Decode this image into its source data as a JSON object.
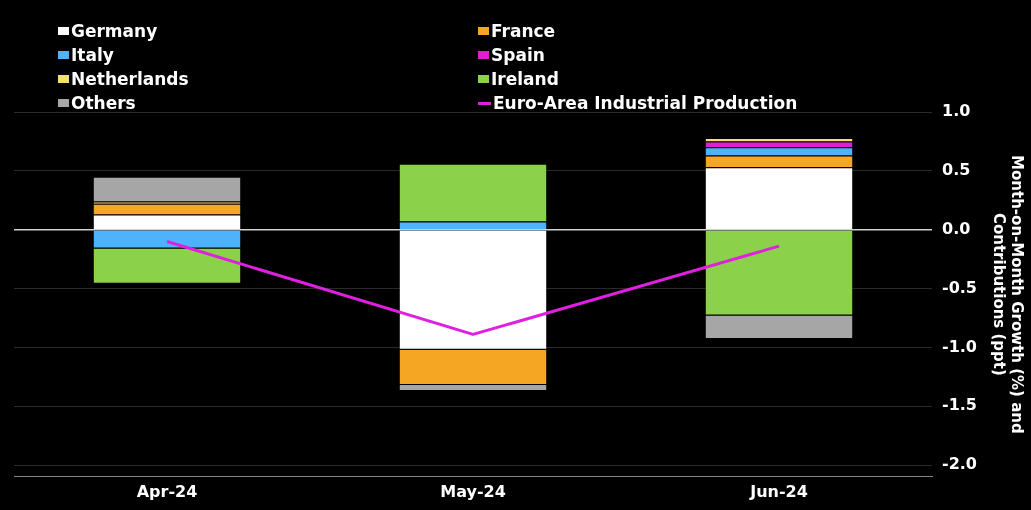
{
  "chart_data": {
    "type": "bar",
    "stacked": true,
    "categories": [
      "Apr-24",
      "May-24",
      "Jun-24"
    ],
    "y2label": "Month-on-Month Growth (%) and Contributions (ppt)",
    "y2lim": [
      -2.1,
      1.0
    ],
    "y2ticks": [
      {
        "value": -2,
        "label": "-2.0"
      },
      {
        "value": -1.5,
        "label": "-1.5"
      },
      {
        "value": -1,
        "label": "-1.0"
      },
      {
        "value": -0.5,
        "label": "-0.5"
      },
      {
        "value": 0,
        "label": "0.0"
      },
      {
        "value": 0.5,
        "label": "0.5"
      },
      {
        "value": 1,
        "label": "1.0"
      }
    ],
    "grid": "y",
    "legend": "top left",
    "series": [
      {
        "name": "Germany",
        "color": "#ffffff",
        "axis": "y2",
        "values": [
          0.13,
          -1.02,
          0.53
        ]
      },
      {
        "name": "France",
        "color": "#f5a623",
        "axis": "y2",
        "values": [
          0.09,
          -0.3,
          0.1
        ]
      },
      {
        "name": "Italy",
        "color": "#4db3ff",
        "axis": "y2",
        "values": [
          -0.16,
          0.07,
          0.07
        ]
      },
      {
        "name": "Spain",
        "color": "#e020d0",
        "axis": "y2",
        "values": [
          0,
          0,
          0.05
        ]
      },
      {
        "name": "Netherlands",
        "color": "#f5e06a",
        "axis": "y2",
        "values": [
          0.02,
          0,
          0.03
        ]
      },
      {
        "name": "Ireland",
        "color": "#8cd14a",
        "axis": "y2",
        "values": [
          -0.3,
          0.49,
          -0.73
        ]
      },
      {
        "name": "Others",
        "color": "#a6a6a6",
        "axis": "y2",
        "values": [
          0.21,
          -0.05,
          -0.2
        ]
      },
      {
        "name": "Euro-Area Industrial Production",
        "type": "line",
        "color": "#e020e0",
        "axis": "y2",
        "marker": "none",
        "values": [
          -0.1,
          -0.89,
          -0.14
        ]
      }
    ]
  }
}
